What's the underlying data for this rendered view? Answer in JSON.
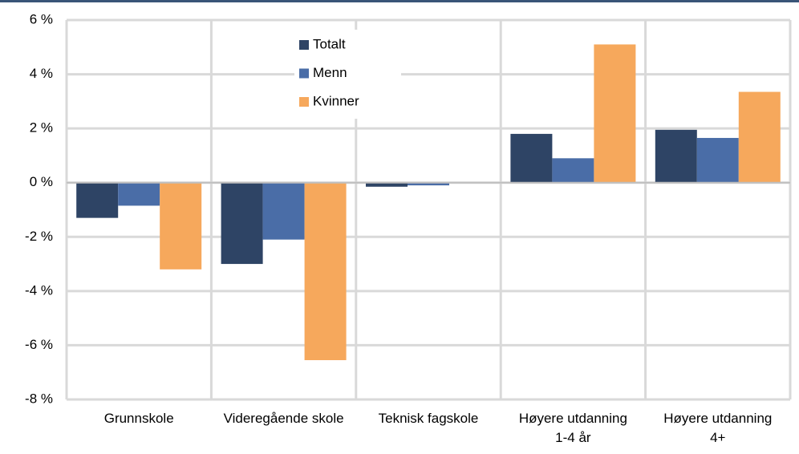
{
  "chart_data": {
    "type": "bar",
    "categories": [
      "Grunnskole",
      "Videregående skole",
      "Teknisk fagskole",
      "Høyere utdanning 1-4 år",
      "Høyere utdanning 4+"
    ],
    "series": [
      {
        "name": "Totalt",
        "color": "#2e4465",
        "values": [
          -1.3,
          -3.0,
          -0.15,
          1.8,
          1.95
        ]
      },
      {
        "name": "Menn",
        "color": "#4a6da7",
        "values": [
          -0.85,
          -2.1,
          -0.1,
          0.9,
          1.65
        ]
      },
      {
        "name": "Kvinner",
        "color": "#f6a85c",
        "values": [
          -3.2,
          -6.55,
          0,
          5.1,
          3.35
        ]
      }
    ],
    "ylim": [
      -8,
      6
    ],
    "yticks": [
      {
        "value": -8,
        "label": "-8 %"
      },
      {
        "value": -6,
        "label": "-6 %"
      },
      {
        "value": -4,
        "label": "-4 %"
      },
      {
        "value": -2,
        "label": "-2 %"
      },
      {
        "value": 0,
        "label": "0 %"
      },
      {
        "value": 2,
        "label": "2 %"
      },
      {
        "value": 4,
        "label": "4 %"
      },
      {
        "value": 6,
        "label": "6 %"
      }
    ],
    "grid": true
  }
}
